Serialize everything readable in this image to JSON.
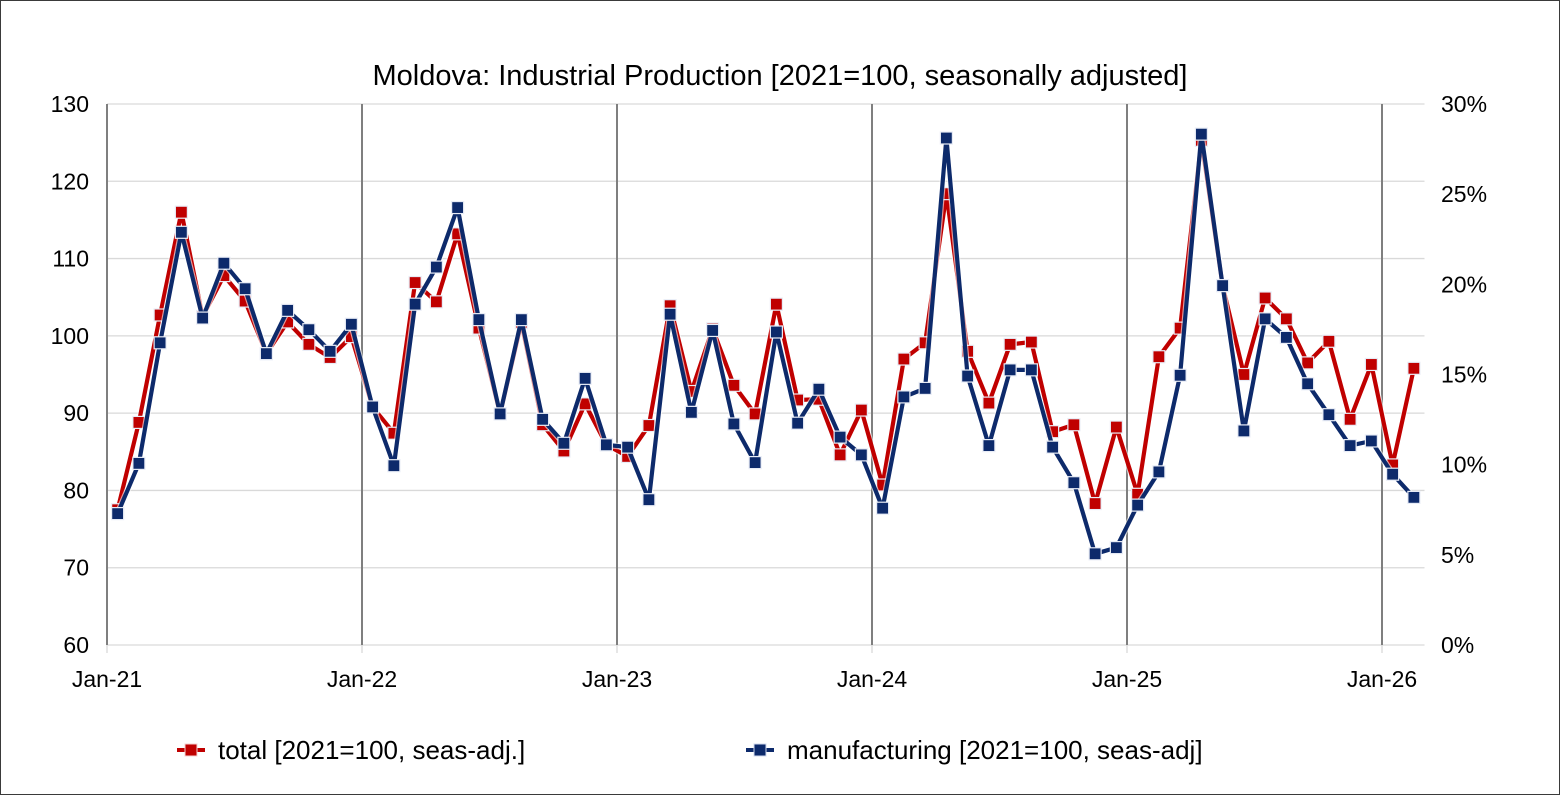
{
  "chart_data": {
    "type": "line",
    "title": "Moldova: Industrial Production [2021=100, seasonally adjusted]",
    "xlabel": "",
    "ylabel": "",
    "y2label": "",
    "ylim": [
      60,
      130
    ],
    "y_ticks": [
      "60",
      "70",
      "80",
      "90",
      "100",
      "110",
      "120",
      "130"
    ],
    "y2lim": [
      0,
      30
    ],
    "y2_ticks": [
      "0%",
      "5%",
      "10%",
      "15%",
      "20%",
      "25%",
      "30%"
    ],
    "x_tick_labels": [
      "Jan-21",
      "Jan-22",
      "Jan-23",
      "Jan-24",
      "Jan-25",
      "Jan-26"
    ],
    "grid": true,
    "legend_position": "bottom",
    "x": [
      "Jan-21",
      "Feb-21",
      "Mar-21",
      "Apr-21",
      "May-21",
      "Jun-21",
      "Jul-21",
      "Aug-21",
      "Sep-21",
      "Oct-21",
      "Nov-21",
      "Dec-21",
      "Jan-22",
      "Feb-22",
      "Mar-22",
      "Apr-22",
      "May-22",
      "Jun-22",
      "Jul-22",
      "Aug-22",
      "Sep-22",
      "Oct-22",
      "Nov-22",
      "Dec-22",
      "Jan-23",
      "Feb-23",
      "Mar-23",
      "Apr-23",
      "May-23",
      "Jun-23",
      "Jul-23",
      "Aug-23",
      "Sep-23",
      "Oct-23",
      "Nov-23",
      "Dec-23",
      "Jan-24",
      "Feb-24",
      "Mar-24",
      "Apr-24",
      "May-24",
      "Jun-24",
      "Jul-24",
      "Aug-24",
      "Sep-24",
      "Oct-24",
      "Nov-24",
      "Dec-24",
      "Jan-25",
      "Feb-25",
      "Mar-25",
      "Apr-25",
      "May-25",
      "Jun-25",
      "Jul-25",
      "Aug-25",
      "Sep-25",
      "Oct-25",
      "Nov-25",
      "Dec-25",
      "Jan-26",
      "Feb-26"
    ],
    "series": [
      {
        "name": "total [2021=100, seas-adj.]",
        "color": "#c00000",
        "axis": "left",
        "values": [
          77.5,
          88.8,
          102.7,
          116.0,
          102.5,
          107.8,
          104.5,
          97.7,
          101.8,
          98.9,
          97.2,
          99.9,
          90.8,
          87.4,
          106.9,
          104.4,
          113.2,
          101.0,
          89.9,
          101.7,
          88.5,
          85.1,
          91.2,
          85.9,
          84.4,
          88.4,
          103.9,
          92.8,
          100.9,
          93.6,
          89.9,
          104.1,
          91.7,
          91.8,
          84.6,
          90.4,
          80.7,
          97.0,
          99.1,
          118.4,
          98.0,
          91.3,
          98.9,
          99.2,
          87.6,
          88.5,
          78.3,
          88.2,
          79.5,
          97.3,
          101.0,
          125.3,
          106.5,
          95.0,
          104.9,
          102.2,
          96.5,
          99.3,
          89.2,
          96.3,
          83.3,
          95.8
        ]
      },
      {
        "name": "manufacturing [2021=100, seas-adj]",
        "color": "#0d2a6b",
        "axis": "left",
        "values": [
          77.0,
          83.5,
          99.1,
          113.4,
          102.3,
          109.4,
          106.1,
          97.7,
          103.3,
          100.8,
          98.0,
          101.5,
          90.8,
          83.2,
          104.1,
          108.9,
          116.6,
          102.1,
          89.9,
          102.1,
          89.2,
          86.1,
          94.5,
          85.9,
          85.6,
          78.8,
          102.8,
          90.1,
          100.7,
          88.6,
          83.6,
          100.5,
          88.7,
          93.1,
          86.9,
          84.6,
          77.7,
          92.1,
          93.2,
          125.6,
          94.8,
          85.8,
          95.6,
          95.6,
          85.6,
          81.0,
          71.8,
          72.6,
          78.1,
          82.4,
          94.9,
          126.1,
          106.5,
          87.7,
          102.2,
          99.8,
          93.8,
          89.8,
          85.8,
          86.4,
          82.1,
          79.1
        ]
      }
    ]
  }
}
